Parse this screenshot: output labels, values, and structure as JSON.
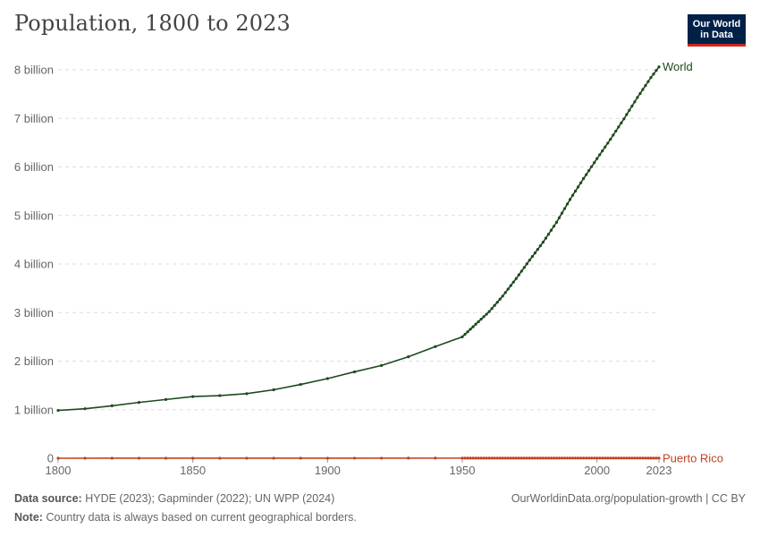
{
  "header": {
    "title": "Population, 1800 to 2023",
    "logo_line1": "Our World",
    "logo_line2": "in Data"
  },
  "footer": {
    "source_label": "Data source:",
    "source_text": "HYDE (2023); Gapminder (2022); UN WPP (2024)",
    "note_label": "Note:",
    "note_text": "Country data is always based on current geographical borders.",
    "url_text": "OurWorldinData.org/population-growth | CC BY"
  },
  "colors": {
    "world": "#1d4a1d",
    "puerto_rico": "#c1431f",
    "grid": "#dddddd",
    "logo_bg": "#002147",
    "logo_accent": "#ce261e"
  },
  "chart_data": {
    "type": "line",
    "title": "Population, 1800 to 2023",
    "xlabel": "",
    "ylabel": "",
    "xlim": [
      1800,
      2023
    ],
    "ylim": [
      0,
      8000000000
    ],
    "x_ticks": [
      1800,
      1850,
      1900,
      1950,
      2000,
      2023
    ],
    "y_ticks": [
      0,
      1000000000,
      2000000000,
      3000000000,
      4000000000,
      5000000000,
      6000000000,
      7000000000,
      8000000000
    ],
    "y_tick_labels": [
      "0",
      "1 billion",
      "2 billion",
      "3 billion",
      "4 billion",
      "5 billion",
      "6 billion",
      "7 billion",
      "8 billion"
    ],
    "grid": "horizontal dashed",
    "legend": "labels at line ends",
    "series": [
      {
        "name": "World",
        "color": "#1d4a1d",
        "points": [
          [
            1800,
            985000000
          ],
          [
            1810,
            1020000000
          ],
          [
            1820,
            1080000000
          ],
          [
            1830,
            1150000000
          ],
          [
            1840,
            1210000000
          ],
          [
            1850,
            1270000000
          ],
          [
            1860,
            1290000000
          ],
          [
            1870,
            1330000000
          ],
          [
            1880,
            1410000000
          ],
          [
            1890,
            1520000000
          ],
          [
            1900,
            1640000000
          ],
          [
            1910,
            1780000000
          ],
          [
            1920,
            1910000000
          ],
          [
            1930,
            2090000000
          ],
          [
            1940,
            2300000000
          ],
          [
            1950,
            2500000000
          ],
          [
            1955,
            2760000000
          ],
          [
            1960,
            3020000000
          ],
          [
            1965,
            3340000000
          ],
          [
            1970,
            3700000000
          ],
          [
            1975,
            4080000000
          ],
          [
            1980,
            4450000000
          ],
          [
            1985,
            4860000000
          ],
          [
            1990,
            5330000000
          ],
          [
            1995,
            5760000000
          ],
          [
            2000,
            6170000000
          ],
          [
            2005,
            6570000000
          ],
          [
            2010,
            6990000000
          ],
          [
            2015,
            7430000000
          ],
          [
            2020,
            7840000000
          ],
          [
            2023,
            8060000000
          ]
        ]
      },
      {
        "name": "Puerto Rico",
        "color": "#c1431f",
        "points": [
          [
            1800,
            150000
          ],
          [
            1850,
            500000
          ],
          [
            1900,
            950000
          ],
          [
            1950,
            2200000
          ],
          [
            1960,
            2360000
          ],
          [
            1970,
            2720000
          ],
          [
            1980,
            3200000
          ],
          [
            1990,
            3530000
          ],
          [
            2000,
            3800000
          ],
          [
            2010,
            3720000
          ],
          [
            2020,
            3280000
          ],
          [
            2023,
            3260000
          ]
        ]
      }
    ]
  }
}
